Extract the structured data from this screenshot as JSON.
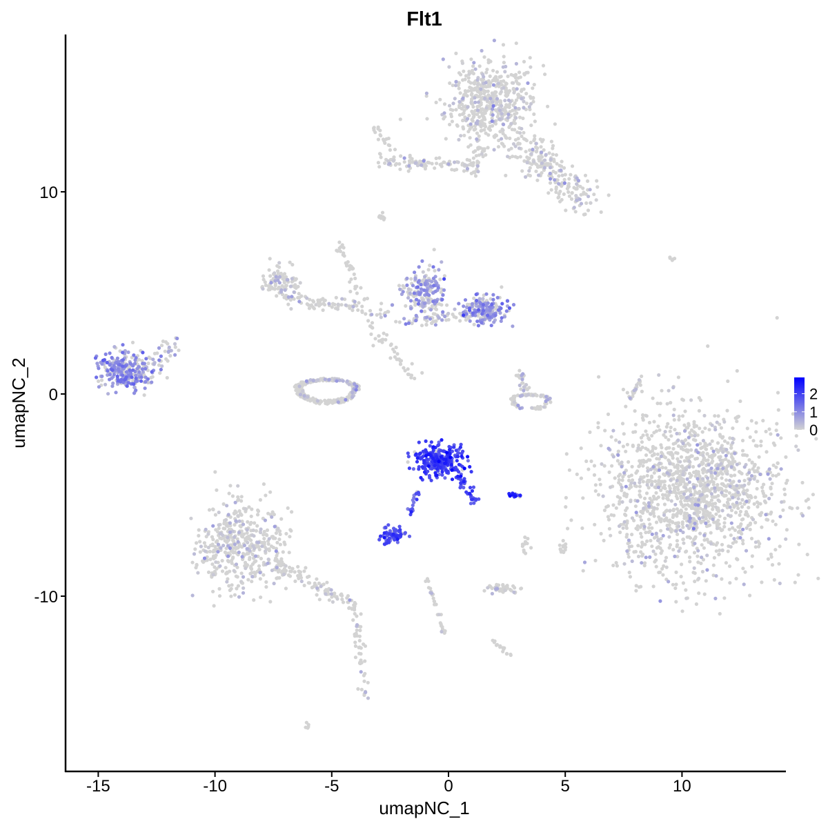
{
  "chart_data": {
    "type": "scatter",
    "title": "Flt1",
    "xlabel": "umapNC_1",
    "ylabel": "umapNC_2",
    "xlim": [
      -16.4,
      14.4
    ],
    "ylim": [
      -18.7,
      17.8
    ],
    "xticks": [
      -15,
      -10,
      -5,
      0,
      5,
      10
    ],
    "xtick_labels": [
      "-15",
      "-10",
      "-5",
      "0",
      "5",
      "10"
    ],
    "yticks": [
      -10,
      0,
      10
    ],
    "ytick_labels": [
      "-10",
      "0",
      "10"
    ],
    "grid": false,
    "legend": {
      "placement": "right",
      "type": "colorbar",
      "min": 0,
      "max": 2.9,
      "ticks": [
        0,
        1,
        2
      ],
      "tick_labels": [
        "0",
        "1",
        "2"
      ],
      "low_color": "#d3d3d3",
      "high_color": "#0000ff"
    },
    "clusters": [
      {
        "shape": "blob",
        "center": [
          1.8,
          14.4
        ],
        "spread": [
          1.2,
          1.2
        ],
        "n": 520,
        "expr": 0.02
      },
      {
        "shape": "line",
        "from": [
          3.2,
          12.4
        ],
        "to": [
          5.8,
          9.5
        ],
        "width": 0.9,
        "n": 220,
        "expr": 0.02
      },
      {
        "shape": "line",
        "from": [
          -3.0,
          11.6
        ],
        "to": [
          1.2,
          11.2
        ],
        "width": 0.35,
        "n": 90,
        "expr": 0.03
      },
      {
        "shape": "line",
        "from": [
          1.4,
          12.2
        ],
        "to": [
          1.0,
          10.9
        ],
        "width": 0.3,
        "n": 30,
        "expr": 0
      },
      {
        "shape": "blob",
        "center": [
          10.4,
          -4.8
        ],
        "spread": [
          2.4,
          2.5
        ],
        "n": 1500,
        "expr": 0.01
      },
      {
        "shape": "blob",
        "center": [
          -13.8,
          1.2
        ],
        "spread": [
          0.75,
          0.6
        ],
        "n": 260,
        "expr": 0.9
      },
      {
        "shape": "line",
        "from": [
          -13.0,
          1.0
        ],
        "to": [
          -11.8,
          2.5
        ],
        "width": 0.5,
        "n": 40,
        "expr": 0.4
      },
      {
        "shape": "blob",
        "center": [
          -7.2,
          5.6
        ],
        "spread": [
          0.45,
          0.45
        ],
        "n": 90,
        "expr": 0.05
      },
      {
        "shape": "line",
        "from": [
          -7.0,
          4.8
        ],
        "to": [
          -2.5,
          4.0
        ],
        "width": 0.35,
        "n": 90,
        "expr": 0.02
      },
      {
        "shape": "line",
        "from": [
          -4.7,
          7.5
        ],
        "to": [
          -3.5,
          4.2
        ],
        "width": 0.2,
        "n": 35,
        "expr": 0
      },
      {
        "shape": "line",
        "from": [
          -3.5,
          3.5
        ],
        "to": [
          -1.4,
          0.7
        ],
        "width": 0.3,
        "n": 45,
        "expr": 0
      },
      {
        "shape": "ring",
        "center": [
          -5.2,
          0.3
        ],
        "spread": [
          1.4,
          0.8
        ],
        "n": 280,
        "expr": 0.05
      },
      {
        "shape": "blob",
        "center": [
          -1.0,
          5.0
        ],
        "spread": [
          0.55,
          0.7
        ],
        "n": 200,
        "expr": 0.7
      },
      {
        "shape": "blob",
        "center": [
          1.6,
          4.1
        ],
        "spread": [
          0.6,
          0.45
        ],
        "n": 170,
        "expr": 0.8
      },
      {
        "shape": "line",
        "from": [
          -2.0,
          3.6
        ],
        "to": [
          1.0,
          3.9
        ],
        "width": 0.3,
        "n": 60,
        "expr": 0.3
      },
      {
        "shape": "ring",
        "center": [
          3.5,
          -0.3
        ],
        "spread": [
          0.9,
          0.5
        ],
        "n": 80,
        "expr": 0.15
      },
      {
        "shape": "line",
        "from": [
          3.0,
          1.3
        ],
        "to": [
          3.4,
          -0.2
        ],
        "width": 0.2,
        "n": 25,
        "expr": 0.4
      },
      {
        "shape": "blob",
        "center": [
          -0.4,
          -3.3
        ],
        "spread": [
          0.6,
          0.5
        ],
        "n": 270,
        "expr": 2.0
      },
      {
        "shape": "line",
        "from": [
          0.3,
          -3.8
        ],
        "to": [
          1.2,
          -5.5
        ],
        "width": 0.2,
        "n": 40,
        "expr": 1.8
      },
      {
        "shape": "line",
        "from": [
          -1.3,
          -4.8
        ],
        "to": [
          -1.8,
          -6.3
        ],
        "width": 0.12,
        "n": 20,
        "expr": 1.6
      },
      {
        "shape": "blob",
        "center": [
          -2.4,
          -7.0
        ],
        "spread": [
          0.35,
          0.25
        ],
        "n": 70,
        "expr": 1.8
      },
      {
        "shape": "blob",
        "center": [
          2.8,
          -5.0
        ],
        "spread": [
          0.2,
          0.07
        ],
        "n": 15,
        "expr": 2.1
      },
      {
        "shape": "blob",
        "center": [
          -8.9,
          -7.5
        ],
        "spread": [
          1.1,
          1.5
        ],
        "n": 460,
        "expr": 0.02
      },
      {
        "shape": "line",
        "from": [
          -7.5,
          -8.3
        ],
        "to": [
          -4.0,
          -10.5
        ],
        "width": 0.35,
        "n": 110,
        "expr": 0.03
      },
      {
        "shape": "line",
        "from": [
          -4.0,
          -10.5
        ],
        "to": [
          -3.6,
          -15.0
        ],
        "width": 0.25,
        "n": 50,
        "expr": 0.03
      },
      {
        "shape": "blob",
        "center": [
          2.4,
          -9.6
        ],
        "spread": [
          0.5,
          0.2
        ],
        "n": 45,
        "expr": 0.08
      },
      {
        "shape": "line",
        "from": [
          -0.9,
          -9.2
        ],
        "to": [
          -0.2,
          -11.8
        ],
        "width": 0.12,
        "n": 30,
        "expr": 0.1
      },
      {
        "shape": "line",
        "from": [
          1.9,
          -12.2
        ],
        "to": [
          2.6,
          -12.9
        ],
        "width": 0.12,
        "n": 15,
        "expr": 0
      },
      {
        "shape": "line",
        "from": [
          7.8,
          -0.2
        ],
        "to": [
          8.3,
          0.9
        ],
        "width": 0.1,
        "n": 20,
        "expr": 0.1
      },
      {
        "shape": "line",
        "from": [
          -3.1,
          13.1
        ],
        "to": [
          -2.5,
          12.2
        ],
        "width": 0.2,
        "n": 20,
        "expr": 0
      },
      {
        "shape": "blob",
        "center": [
          -2.9,
          8.8
        ],
        "spread": [
          0.15,
          0.15
        ],
        "n": 10,
        "expr": 0
      },
      {
        "shape": "blob",
        "center": [
          4.9,
          -7.5
        ],
        "spread": [
          0.12,
          0.3
        ],
        "n": 12,
        "expr": 0
      },
      {
        "shape": "blob",
        "center": [
          3.3,
          -7.5
        ],
        "spread": [
          0.12,
          0.3
        ],
        "n": 12,
        "expr": 0
      },
      {
        "shape": "blob",
        "center": [
          -6.0,
          -16.4
        ],
        "spread": [
          0.1,
          0.1
        ],
        "n": 5,
        "expr": 0
      },
      {
        "shape": "blob",
        "center": [
          9.6,
          6.7
        ],
        "spread": [
          0.2,
          0.06
        ],
        "n": 5,
        "expr": 0
      }
    ]
  }
}
